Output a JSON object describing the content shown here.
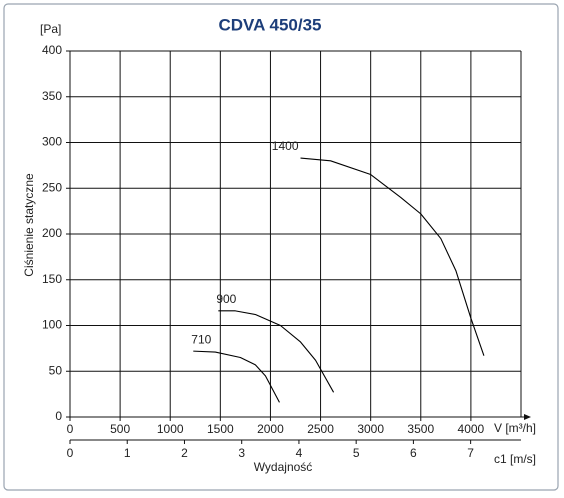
{
  "chart_data": {
    "type": "line",
    "title": "CDVA 450/35",
    "y_unit": "[Pa]",
    "y_label": "Ciśnienie statyczne",
    "x_label": "V [m³/h]",
    "x2_label": "c1 [m/s]",
    "x_caption": "Wydajność",
    "xlim": [
      0,
      4500
    ],
    "xticks": [
      0,
      500,
      1000,
      1500,
      2000,
      2500,
      3000,
      3500,
      4000
    ],
    "ylim": [
      0,
      400
    ],
    "yticks": [
      0,
      50,
      100,
      150,
      200,
      250,
      300,
      350,
      400
    ],
    "x2lim": [
      0,
      7.88
    ],
    "x2ticks": [
      0,
      1,
      2,
      3,
      4,
      5,
      6,
      7
    ],
    "grid": true,
    "series": [
      {
        "name": "1400",
        "color": "#000000",
        "x": [
          2300,
          2600,
          3000,
          3300,
          3500,
          3700,
          3850,
          4000,
          4130
        ],
        "values": [
          283,
          280,
          265,
          240,
          222,
          195,
          160,
          108,
          67
        ]
      },
      {
        "name": "900",
        "color": "#000000",
        "x": [
          1480,
          1650,
          1850,
          2100,
          2300,
          2450,
          2630
        ],
        "values": [
          116,
          116,
          112,
          100,
          82,
          62,
          27
        ]
      },
      {
        "name": "710",
        "color": "#000000",
        "x": [
          1230,
          1450,
          1700,
          1850,
          1950,
          2090
        ],
        "values": [
          72,
          71,
          65,
          57,
          45,
          16
        ]
      }
    ]
  }
}
